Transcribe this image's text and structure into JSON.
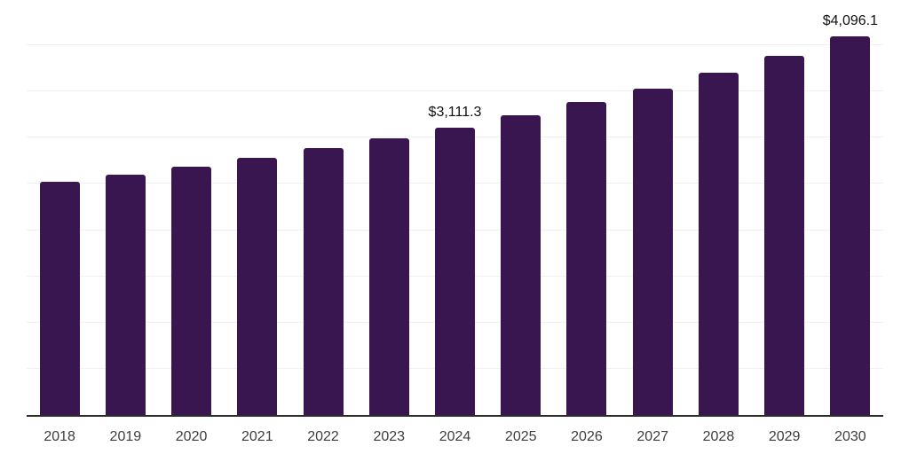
{
  "chart_data": {
    "type": "bar",
    "title": "",
    "xlabel": "",
    "ylabel": "",
    "categories": [
      "2018",
      "2019",
      "2020",
      "2021",
      "2022",
      "2023",
      "2024",
      "2025",
      "2026",
      "2027",
      "2028",
      "2029",
      "2030"
    ],
    "values": [
      2520,
      2605,
      2690,
      2785,
      2890,
      2995,
      3111.3,
      3240,
      3385,
      3530,
      3705,
      3890,
      4096.1
    ],
    "value_labels": [
      {
        "category": "2024",
        "text": "$3,111.3"
      },
      {
        "category": "2030",
        "text": "$4,096.1"
      }
    ],
    "ylim": [
      0,
      4500
    ],
    "grid_step": 500,
    "grid": "horizontal",
    "y_tick_labels_visible": false,
    "legend_position": "none",
    "colors": {
      "bar": "#3a1650",
      "axis_line": "#2b2b2b",
      "gridline": "#f0f0f0",
      "tick_label": "#3d3d3d",
      "data_label": "#111111",
      "background": "#ffffff"
    }
  }
}
